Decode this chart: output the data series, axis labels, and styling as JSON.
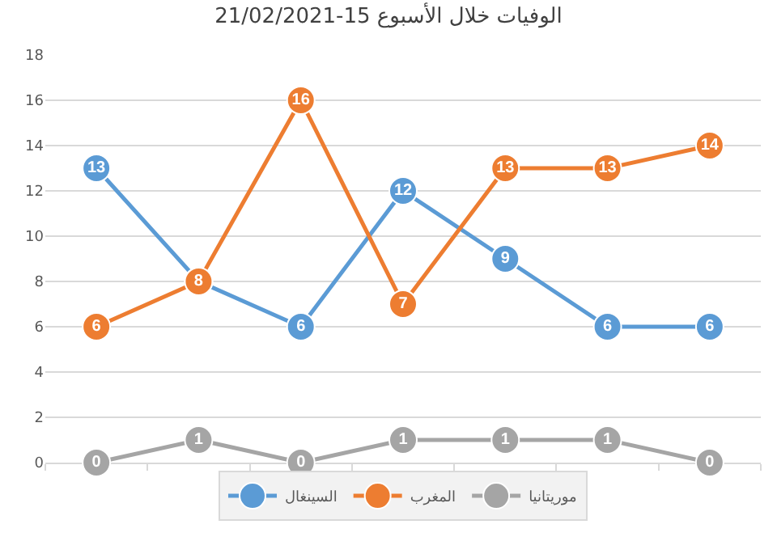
{
  "chart_data": {
    "type": "line",
    "title": "الوفيات خلال الأسبوع 15-21/02/2021",
    "categories": [
      null,
      null,
      null,
      null,
      null,
      null,
      null
    ],
    "series": [
      {
        "name": "السينغال",
        "color": "#5b9bd5",
        "values": [
          13,
          8,
          6,
          12,
          9,
          6,
          6
        ],
        "value_labels": [
          "13",
          null,
          "6",
          "12",
          "9",
          "6",
          "6"
        ]
      },
      {
        "name": "المغرب",
        "color": "#ed7d31",
        "values": [
          6,
          8,
          16,
          7,
          13,
          13,
          14
        ],
        "value_labels": [
          "6",
          "8",
          "16",
          "7",
          "13",
          "13",
          "14"
        ]
      },
      {
        "name": "موريتانيا",
        "color": "#a5a5a5",
        "values": [
          0,
          1,
          0,
          1,
          1,
          1,
          0
        ],
        "value_labels": [
          "0",
          "1",
          "0",
          "1",
          "1",
          "1",
          "0"
        ]
      }
    ],
    "ylim": [
      0,
      18
    ],
    "yticks": [
      0,
      2,
      4,
      6,
      8,
      10,
      12,
      14,
      16,
      18
    ],
    "grid": "y",
    "legend": "bottom",
    "marker": "circle",
    "line_style": "solid",
    "tick_labels": "y"
  }
}
